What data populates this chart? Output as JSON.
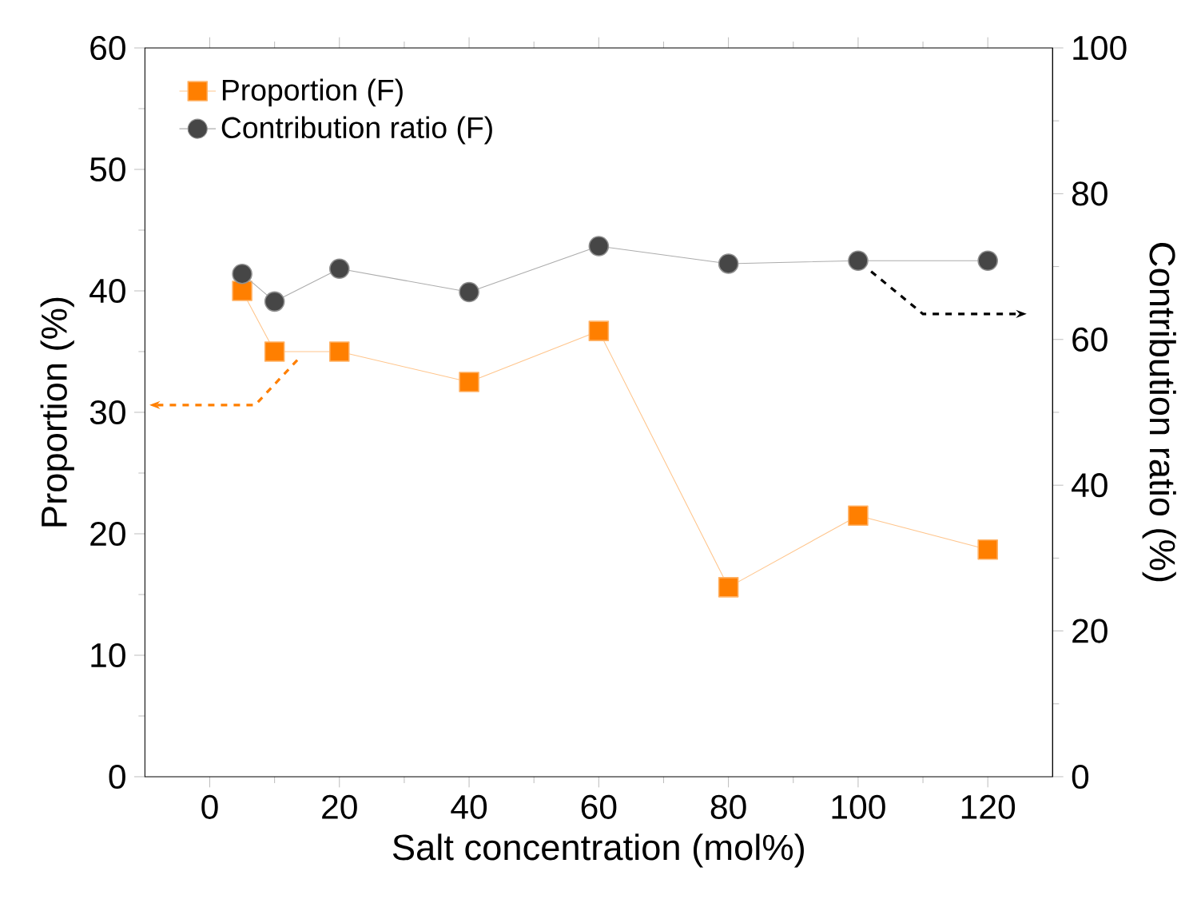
{
  "chart_data": {
    "type": "line",
    "xlabel": "Salt concentration (mol%)",
    "ylabel": "Proportion (%)",
    "y2label": "Contribution ratio (%)",
    "x": [
      5,
      10,
      20,
      40,
      60,
      80,
      100,
      120
    ],
    "series": [
      {
        "name": "Proportion (F)",
        "color": "#ff7f00",
        "marker": "square",
        "values": [
          40.0,
          35.0,
          35.0,
          32.5,
          36.7,
          15.6,
          21.5,
          18.7
        ]
      },
      {
        "name": "Contribution ratio (F)",
        "color": "#464646",
        "marker": "circle",
        "axis": "y2",
        "values": [
          69.0,
          65.2,
          69.7,
          66.5,
          72.8,
          70.4,
          70.8,
          70.8
        ]
      }
    ],
    "xlim": [
      -10,
      130
    ],
    "xticks": [
      0,
      20,
      40,
      60,
      80,
      100,
      120
    ],
    "ylim": [
      0,
      60
    ],
    "yticks": [
      0,
      10,
      20,
      30,
      40,
      50,
      60
    ],
    "y2lim": [
      0,
      100
    ],
    "y2ticks": [
      0,
      20,
      40,
      60,
      80,
      100
    ],
    "legend": "top left",
    "grid": false,
    "line_style": "solid"
  }
}
